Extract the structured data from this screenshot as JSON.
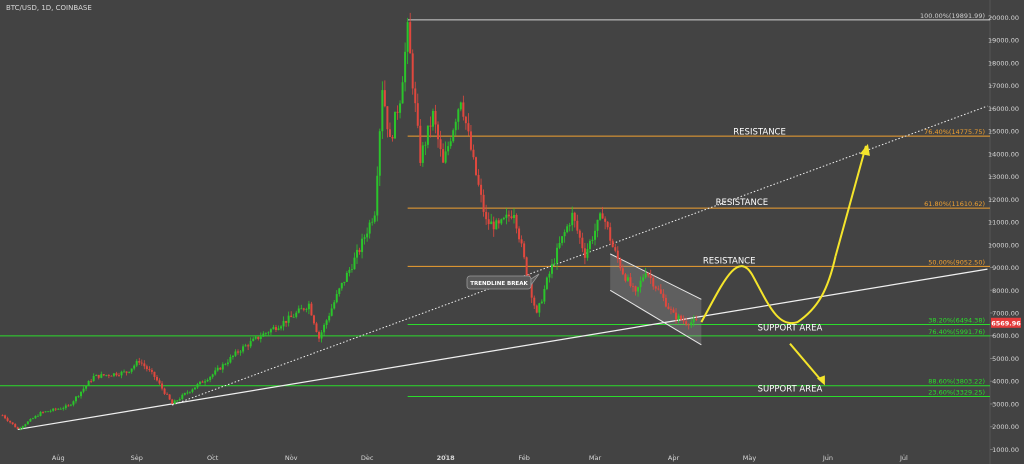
{
  "chart_data": {
    "type": "candlestick",
    "symbol_label": "BTC/USD, 1D, COINBASE",
    "y_axis": {
      "ticks": [
        1000,
        2000,
        3000,
        4000,
        5000,
        6000,
        7000,
        8000,
        9000,
        10000,
        11000,
        12000,
        13000,
        14000,
        15000,
        16000,
        17000,
        18000,
        19000,
        20000
      ],
      "tick_labels": [
        "1000.00",
        "2000.00",
        "3000.00",
        "4000.00",
        "5000.00",
        "6000.00",
        "7000.00",
        "8000.00",
        "9000.00",
        "10000.00",
        "11000.00",
        "12000.00",
        "13000.00",
        "14000.00",
        "15000.00",
        "16000.00",
        "17000.00",
        "18000.00",
        "19000.00",
        "20000.00"
      ],
      "ylim": [
        800,
        20500
      ]
    },
    "x_axis": {
      "start": "2017-07-09",
      "end": "2018-08-04",
      "ticks": [
        {
          "date": "2017-08-01",
          "label": "Aug"
        },
        {
          "date": "2017-09-01",
          "label": "Sep"
        },
        {
          "date": "2017-10-01",
          "label": "Oct"
        },
        {
          "date": "2017-11-01",
          "label": "Nov"
        },
        {
          "date": "2017-12-01",
          "label": "Dec"
        },
        {
          "date": "2018-01-01",
          "label": "2018"
        },
        {
          "date": "2018-02-01",
          "label": "Feb"
        },
        {
          "date": "2018-03-01",
          "label": "Mar"
        },
        {
          "date": "2018-04-01",
          "label": "Apr"
        },
        {
          "date": "2018-05-01",
          "label": "May"
        },
        {
          "date": "2018-06-01",
          "label": "Jun"
        },
        {
          "date": "2018-07-01",
          "label": "Jul"
        }
      ]
    },
    "price_path": [
      {
        "date": "2017-07-10",
        "close": 2500
      },
      {
        "date": "2017-07-16",
        "close": 1900
      },
      {
        "date": "2017-07-25",
        "close": 2600
      },
      {
        "date": "2017-08-05",
        "close": 2900
      },
      {
        "date": "2017-08-15",
        "close": 4200
      },
      {
        "date": "2017-08-28",
        "close": 4400
      },
      {
        "date": "2017-09-02",
        "close": 4900
      },
      {
        "date": "2017-09-08",
        "close": 4200
      },
      {
        "date": "2017-09-15",
        "close": 3000
      },
      {
        "date": "2017-09-22",
        "close": 3600
      },
      {
        "date": "2017-10-01",
        "close": 4300
      },
      {
        "date": "2017-10-12",
        "close": 5400
      },
      {
        "date": "2017-10-20",
        "close": 6000
      },
      {
        "date": "2017-11-01",
        "close": 6800
      },
      {
        "date": "2017-11-08",
        "close": 7400
      },
      {
        "date": "2017-11-12",
        "close": 5900
      },
      {
        "date": "2017-11-20",
        "close": 8000
      },
      {
        "date": "2017-11-28",
        "close": 9800
      },
      {
        "date": "2017-12-04",
        "close": 11500
      },
      {
        "date": "2017-12-07",
        "close": 17000
      },
      {
        "date": "2017-12-10",
        "close": 14500
      },
      {
        "date": "2017-12-14",
        "close": 16500
      },
      {
        "date": "2017-12-17",
        "close": 19400
      },
      {
        "date": "2017-12-22",
        "close": 13800
      },
      {
        "date": "2017-12-27",
        "close": 15700
      },
      {
        "date": "2017-12-31",
        "close": 13500
      },
      {
        "date": "2018-01-07",
        "close": 16500
      },
      {
        "date": "2018-01-12",
        "close": 13600
      },
      {
        "date": "2018-01-17",
        "close": 11000
      },
      {
        "date": "2018-01-22",
        "close": 10800
      },
      {
        "date": "2018-01-28",
        "close": 11500
      },
      {
        "date": "2018-02-02",
        "close": 8800
      },
      {
        "date": "2018-02-06",
        "close": 6900
      },
      {
        "date": "2018-02-10",
        "close": 8400
      },
      {
        "date": "2018-02-15",
        "close": 10000
      },
      {
        "date": "2018-02-20",
        "close": 11300
      },
      {
        "date": "2018-02-25",
        "close": 9600
      },
      {
        "date": "2018-03-04",
        "close": 11400
      },
      {
        "date": "2018-03-08",
        "close": 9900
      },
      {
        "date": "2018-03-12",
        "close": 8800
      },
      {
        "date": "2018-03-17",
        "close": 7800
      },
      {
        "date": "2018-03-21",
        "close": 8900
      },
      {
        "date": "2018-03-27",
        "close": 7800
      },
      {
        "date": "2018-04-01",
        "close": 6900
      },
      {
        "date": "2018-04-06",
        "close": 6600
      },
      {
        "date": "2018-04-10",
        "close": 6600
      }
    ],
    "fibonacci_levels": [
      {
        "label": "100.00%(19891.99)",
        "value": 19891.99,
        "color": "#d0d0d0"
      },
      {
        "label": "76.40%(14775.75)",
        "value": 14775.75,
        "color": "#f0a030"
      },
      {
        "label": "61.80%(11610.62)",
        "value": 11610.62,
        "color": "#f0a030"
      },
      {
        "label": "50.00%(9052.50)",
        "value": 9052.5,
        "color": "#f0a030"
      },
      {
        "label": "38.20%(6494.38)",
        "value": 6494.38,
        "color": "#2bdc2b"
      },
      {
        "label": "76.40%(5991.76)",
        "value": 5991.76,
        "color": "#2bdc2b"
      },
      {
        "label": "88.60%(3803.22)",
        "value": 3803.22,
        "color": "#2bdc2b"
      },
      {
        "label": "23.60%(3329.25)",
        "value": 3329.25,
        "color": "#2bdc2b"
      }
    ],
    "trendlines": [
      {
        "from": {
          "date": "2017-07-16",
          "value": 1880
        },
        "to": {
          "date": "2018-08-03",
          "value": 8930
        },
        "style": "solid"
      },
      {
        "from": {
          "date": "2017-09-15",
          "value": 2950
        },
        "to": {
          "date": "2018-08-03",
          "value": 16100
        },
        "style": "dotted"
      }
    ],
    "channel": {
      "upper": [
        {
          "date": "2018-03-07",
          "value": 9600
        },
        {
          "date": "2018-04-12",
          "value": 7600
        }
      ],
      "lower": [
        {
          "date": "2018-03-07",
          "value": 8000
        },
        {
          "date": "2018-04-12",
          "value": 5600
        }
      ]
    },
    "annotations": {
      "resistance_labels": [
        {
          "text": "RESISTANCE",
          "date": "2018-05-05",
          "value": 14850
        },
        {
          "text": "RESISTANCE",
          "date": "2018-04-28",
          "value": 11740
        },
        {
          "text": "RESISTANCE",
          "date": "2018-04-23",
          "value": 9170
        }
      ],
      "support_labels": [
        {
          "text": "SUPPORT AREA",
          "date": "2018-05-17",
          "value": 6220
        },
        {
          "text": "SUPPORT AREA",
          "date": "2018-05-17",
          "value": 3550
        }
      ],
      "trendline_break": "TRENDLINE BREAK",
      "current_price_label": "6569.96",
      "current_price_value": 6569.96,
      "projection_colors": {
        "path": "#f5e52b"
      }
    },
    "colors": {
      "background": "#434343",
      "up_candle": "#2bc52b",
      "down_candle": "#e0483e",
      "axis_text": "#d8d8d8",
      "trendline": "#f0f0f0",
      "price_tag": "#e53c3c"
    }
  }
}
